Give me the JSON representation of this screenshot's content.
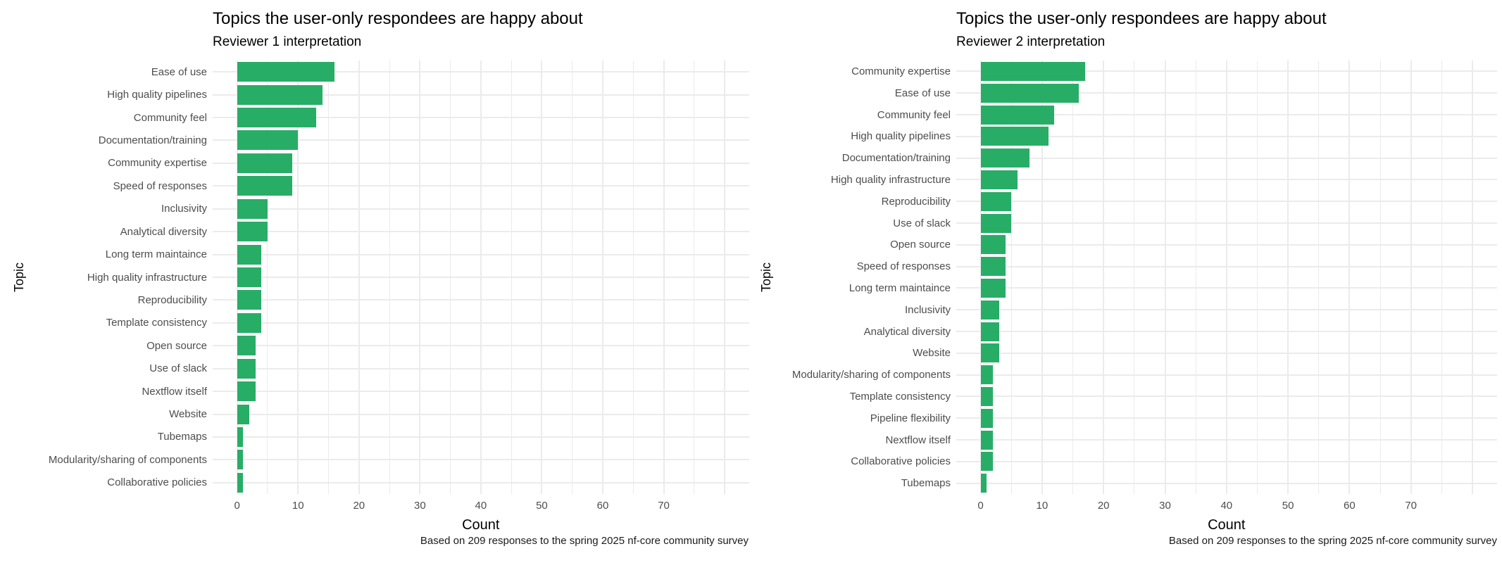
{
  "figure": {
    "background": "#ffffff",
    "grid_color": "#ebebeb",
    "axis_text_color": "#4d4d4d",
    "title_color": "#000000",
    "bar_color": "#28ad66"
  },
  "chart_data": [
    {
      "type": "bar",
      "orientation": "horizontal",
      "title": "Topics the user-only respondees are happy about",
      "subtitle": "Reviewer 1 interpretation",
      "xlabel": "Count",
      "ylabel": "Topic",
      "caption": "Based on 209 responses to the spring 2025 nf-core community survey",
      "x_ticks": [
        0,
        10,
        20,
        30,
        40,
        50,
        60,
        70
      ],
      "xlim": [
        -4,
        84
      ],
      "grid": true,
      "legend": "none",
      "bar_color": "#28ad66",
      "categories": [
        "Ease of use",
        "High quality pipelines",
        "Community feel",
        "Documentation/training",
        "Community expertise",
        "Speed of responses",
        "Inclusivity",
        "Analytical diversity",
        "Long term maintaince",
        "High quality infrastructure",
        "Reproducibility",
        "Template consistency",
        "Open source",
        "Use of slack",
        "Nextflow itself",
        "Website",
        "Tubemaps",
        "Modularity/sharing of components",
        "Collaborative policies"
      ],
      "values": [
        16,
        14,
        13,
        10,
        9,
        9,
        5,
        5,
        4,
        4,
        4,
        4,
        3,
        3,
        3,
        2,
        1,
        1,
        1
      ]
    },
    {
      "type": "bar",
      "orientation": "horizontal",
      "title": "Topics the user-only respondees are happy about",
      "subtitle": "Reviewer 2 interpretation",
      "xlabel": "Count",
      "ylabel": "Topic",
      "caption": "Based on 209 responses to the spring 2025 nf-core community survey",
      "x_ticks": [
        0,
        10,
        20,
        30,
        40,
        50,
        60,
        70
      ],
      "xlim": [
        -4,
        84
      ],
      "grid": true,
      "legend": "none",
      "bar_color": "#28ad66",
      "categories": [
        "Community expertise",
        "Ease of use",
        "Community feel",
        "High quality pipelines",
        "Documentation/training",
        "High quality infrastructure",
        "Reproducibility",
        "Use of slack",
        "Open source",
        "Speed of responses",
        "Long term maintaince",
        "Inclusivity",
        "Analytical diversity",
        "Website",
        "Modularity/sharing of components",
        "Template consistency",
        "Pipeline flexibility",
        "Nextflow itself",
        "Collaborative policies",
        "Tubemaps"
      ],
      "values": [
        17,
        16,
        12,
        11,
        8,
        6,
        5,
        5,
        4,
        4,
        4,
        3,
        3,
        3,
        2,
        2,
        2,
        2,
        2,
        1
      ]
    }
  ]
}
